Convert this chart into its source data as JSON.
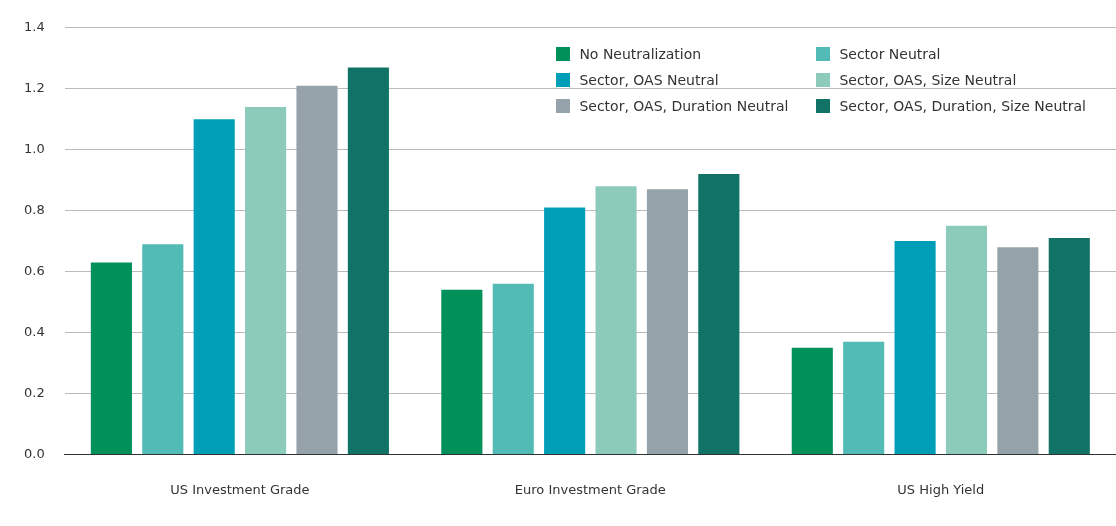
{
  "chart_data": {
    "type": "bar",
    "categories": [
      "US Investment Grade",
      "Euro Investment Grade",
      "US High Yield"
    ],
    "series": [
      {
        "name": "No Neutralization",
        "color": "#00915a",
        "values": [
          0.63,
          0.54,
          0.35
        ]
      },
      {
        "name": "Sector Neutral",
        "color": "#52bbb5",
        "values": [
          0.69,
          0.56,
          0.37
        ]
      },
      {
        "name": "Sector, OAS Neutral",
        "color": "#009fb7",
        "values": [
          1.1,
          0.81,
          0.7
        ]
      },
      {
        "name": "Sector, OAS, Size Neutral",
        "color": "#8ccbb9",
        "values": [
          1.14,
          0.88,
          0.75
        ]
      },
      {
        "name": "Sector, OAS, Duration Neutral",
        "color": "#95a2a9",
        "values": [
          1.21,
          0.87,
          0.68
        ]
      },
      {
        "name": "Sector, OAS, Duration, Size Neutral",
        "color": "#107365",
        "values": [
          1.27,
          0.92,
          0.71
        ]
      }
    ],
    "ylim": [
      0,
      1.4
    ],
    "yticks": [
      {
        "value": 0,
        "label": "0.0"
      },
      {
        "value": 0.2,
        "label": "0.2"
      },
      {
        "value": 0.4,
        "label": "0.4"
      },
      {
        "value": 0.6,
        "label": "0.6"
      },
      {
        "value": 0.8,
        "label": "0.8"
      },
      {
        "value": 1,
        "label": "1.0"
      },
      {
        "value": 1.2,
        "label": "1.2"
      },
      {
        "value": 1.4,
        "label": "1.4"
      }
    ],
    "grid": "y",
    "legend": "top right"
  }
}
